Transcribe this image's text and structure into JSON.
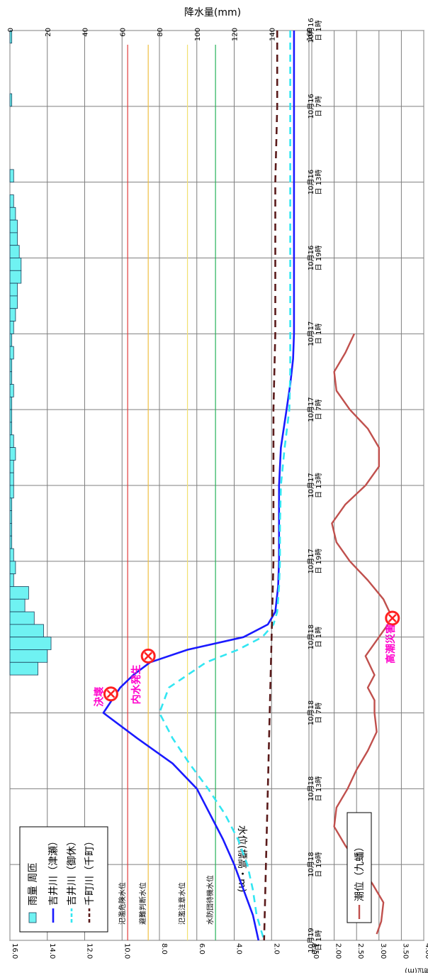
{
  "chart_data": [
    {
      "type": "line",
      "title": "",
      "xlabel": "",
      "ylabel": "水位(標高・m)",
      "ylabel_right": "降水量(mm)",
      "ylim": [
        0,
        16
      ],
      "ylim_right": [
        0,
        160
      ],
      "y_ticks": [
        "0.0",
        "2.0",
        "4.0",
        "6.0",
        "8.0",
        "10.0",
        "12.0",
        "14.0",
        "16.0"
      ],
      "rain_ticks": [
        "0",
        "20",
        "40",
        "60",
        "80",
        "100",
        "120",
        "140",
        "160"
      ],
      "x_ticks": [
        "10月16\n日 1時",
        "10月16\n日 7時",
        "10月16\n日 13時",
        "10月16\n日 19時",
        "10月17\n日 1時",
        "10月17\n日 7時",
        "10月17\n日 13時",
        "10月17\n日 19時",
        "10月18\n日 1時",
        "10月18\n日 7時",
        "10月18\n日 13時",
        "10月18\n日 19時",
        "10月19\n日 1時"
      ],
      "hours_range": [
        0,
        72
      ],
      "legend": {
        "position": "top-left",
        "items": [
          {
            "label": "雨量 周匝",
            "kind": "bar",
            "color": "#6ff2f2"
          },
          {
            "label": "吉井川（津瀬）",
            "kind": "solid",
            "color": "#1a1aff"
          },
          {
            "label": "吉井川（御休）",
            "kind": "dash",
            "color": "#33e6f2"
          },
          {
            "label": "千町川（千町）",
            "kind": "dash",
            "color": "#5a1a1a"
          }
        ]
      },
      "threshold_lines": [
        {
          "label": "氾濫危険水位",
          "value": 9.7,
          "color": "#e23b3b"
        },
        {
          "label": "避難判断水位",
          "value": 8.6,
          "color": "#f0c040"
        },
        {
          "label": "氾濫注意水位",
          "value": 6.5,
          "color": "#f2e070"
        },
        {
          "label": "水防団待機水位",
          "value": 5.0,
          "color": "#27b35a"
        }
      ],
      "rain": {
        "name": "雨量 周匝",
        "x": [
          0,
          5,
          11,
          13,
          14,
          15,
          16,
          17,
          18,
          19,
          20,
          21,
          22,
          23,
          24,
          25,
          26,
          27,
          28,
          29,
          30,
          31,
          32,
          33,
          34,
          35,
          36,
          37,
          38,
          39,
          40,
          41,
          42,
          43,
          44,
          45,
          46,
          47,
          48,
          49,
          50
        ],
        "values": [
          1,
          1,
          2,
          2,
          3,
          4,
          4,
          5,
          6,
          6,
          4,
          4,
          3,
          2,
          1,
          2,
          1,
          1,
          2,
          1,
          1,
          1,
          2,
          3,
          2,
          2,
          2,
          1,
          1,
          1,
          1,
          2,
          3,
          2,
          10,
          8,
          13,
          18,
          22,
          20,
          15
        ]
      },
      "series": [
        {
          "name": "吉井川（津瀬）",
          "color": "#1a1aff",
          "style": "solid",
          "x": [
            0,
            6,
            12,
            18,
            24,
            26,
            28,
            30,
            33,
            36,
            39,
            42,
            44,
            46,
            47,
            48,
            49,
            50,
            51,
            52,
            54,
            56,
            58,
            60,
            62,
            64,
            66,
            68,
            70,
            72
          ],
          "y": [
            0.8,
            0.8,
            0.8,
            0.8,
            0.8,
            0.85,
            1.0,
            1.2,
            1.5,
            1.6,
            1.6,
            1.6,
            1.65,
            1.8,
            2.2,
            3.5,
            6.5,
            8.5,
            9.4,
            10.1,
            11.0,
            9.2,
            7.3,
            6.0,
            5.3,
            4.6,
            4.0,
            3.5,
            3.0,
            2.7
          ]
        },
        {
          "name": "吉井川（御休）",
          "color": "#33e6f2",
          "style": "dash",
          "x": [
            0,
            6,
            12,
            18,
            24,
            27,
            30,
            33,
            36,
            39,
            42,
            44,
            46,
            47,
            48,
            49,
            50,
            52,
            54,
            56,
            58,
            60,
            62,
            64,
            66,
            68,
            70,
            72
          ],
          "y": [
            1.0,
            1.0,
            1.0,
            1.0,
            1.0,
            1.0,
            1.05,
            1.3,
            1.5,
            1.55,
            1.55,
            1.6,
            1.7,
            1.9,
            2.5,
            3.8,
            5.5,
            7.5,
            8.0,
            7.3,
            6.4,
            5.4,
            4.5,
            3.8,
            3.3,
            3.0,
            2.8,
            2.4
          ]
        },
        {
          "name": "千町川（千町）",
          "color": "#5a1a1a",
          "style": "dash",
          "x": [
            0,
            6,
            12,
            18,
            24,
            30,
            36,
            42,
            48,
            54,
            60,
            66,
            72
          ],
          "y": [
            1.7,
            1.7,
            1.8,
            1.8,
            1.8,
            1.9,
            1.9,
            1.9,
            2.0,
            2.1,
            2.2,
            2.3,
            2.4
          ]
        }
      ],
      "annotations": [
        {
          "label": "決壊",
          "x": 52.5,
          "y": 10.6
        },
        {
          "label": "内水発生",
          "x": 49.5,
          "y": 8.6
        }
      ]
    },
    {
      "type": "line",
      "title": "",
      "ylabel": "潮位(m)",
      "ylim": [
        1.5,
        4.0
      ],
      "y_ticks": [
        "1.50",
        "2.00",
        "2.50",
        "3.00",
        "3.50",
        "4.00"
      ],
      "series": [
        {
          "name": "潮位（九蟠）",
          "color": "#c0504d",
          "style": "solid",
          "x": [
            24,
            25.5,
            27,
            28.5,
            30,
            31.5,
            33,
            34.5,
            36,
            37.5,
            39,
            40.5,
            42,
            43.5,
            45,
            46.5,
            48,
            49.5,
            51,
            52,
            53,
            54,
            55.5,
            57,
            58.5,
            60,
            61.5,
            63,
            64.5,
            66,
            67.5,
            69,
            70.5,
            71.5
          ],
          "y": [
            2.45,
            2.25,
            2.0,
            2.05,
            2.35,
            2.75,
            3.0,
            3.0,
            2.7,
            2.25,
            1.95,
            2.05,
            2.35,
            2.75,
            3.1,
            3.3,
            3.0,
            2.7,
            2.9,
            2.75,
            2.9,
            2.9,
            2.95,
            2.75,
            2.5,
            2.3,
            2.05,
            2.0,
            2.25,
            2.55,
            2.85,
            3.1,
            3.05,
            2.95
          ]
        }
      ],
      "annotations": [
        {
          "label": "高潮災害",
          "x": 46.5,
          "y": 3.3
        }
      ]
    }
  ]
}
